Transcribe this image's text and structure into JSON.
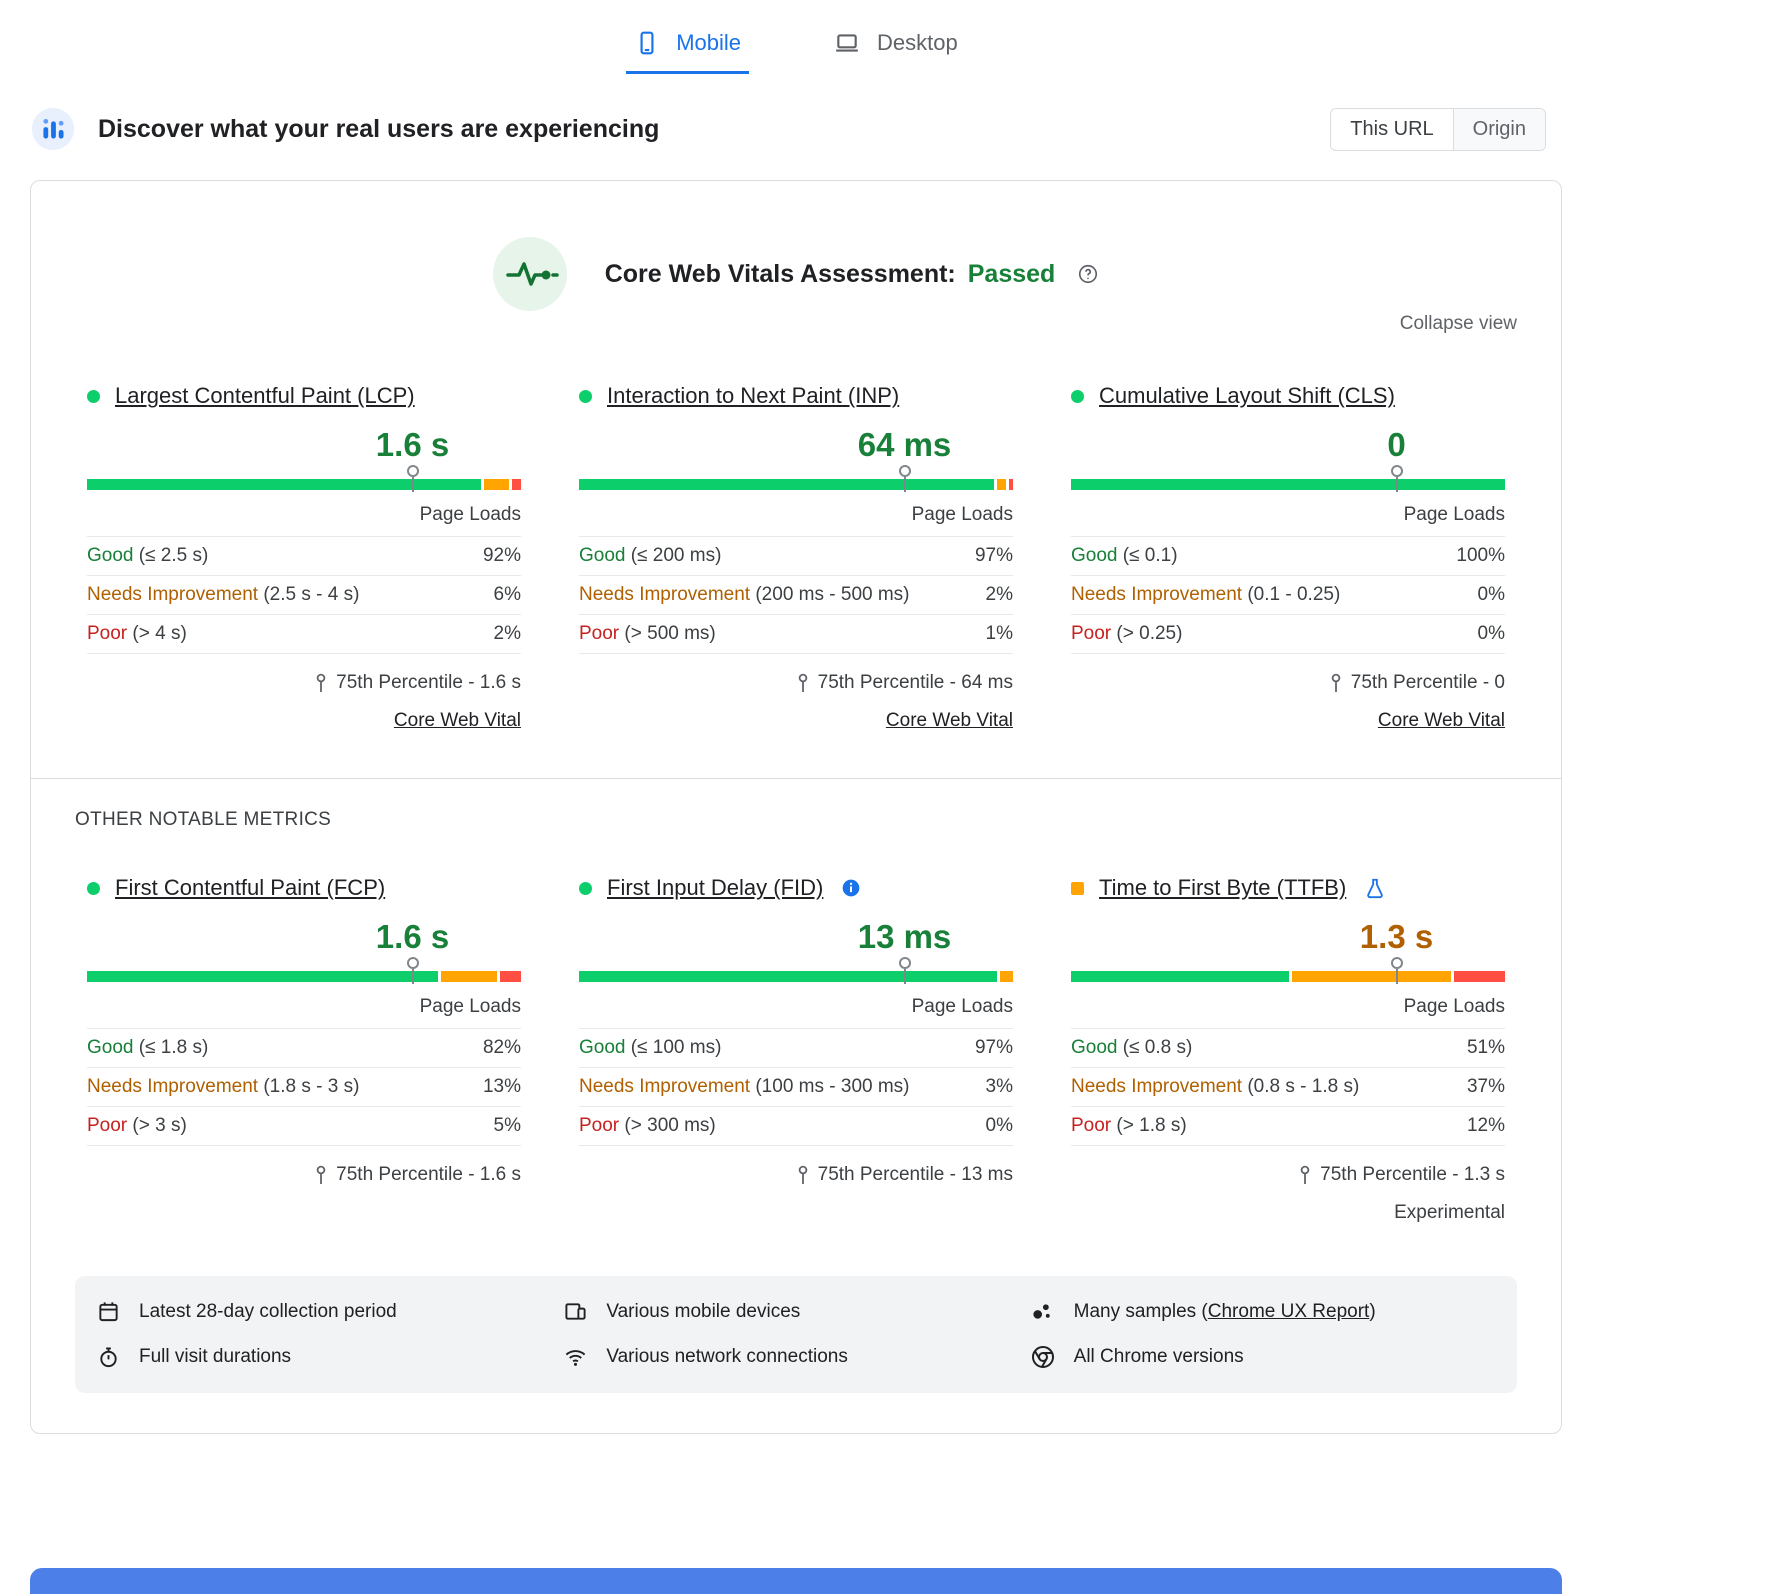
{
  "tabs": [
    {
      "id": "mobile",
      "label": "Mobile",
      "icon": "mobile-icon",
      "active": true
    },
    {
      "id": "desktop",
      "label": "Desktop",
      "icon": "desktop-icon",
      "active": false
    }
  ],
  "field_header": {
    "icon": "field-data-icon",
    "title": "Discover what your real users are experiencing",
    "scope_options": [
      {
        "label": "This URL",
        "selected": true
      },
      {
        "label": "Origin",
        "selected": false
      }
    ]
  },
  "assessment": {
    "icon": "pulse-icon",
    "title": "Core Web Vitals Assessment:",
    "result": "Passed",
    "help_icon": "help-icon",
    "collapse_label": "Collapse view"
  },
  "labels": {
    "page_loads": "Page Loads",
    "other_metrics": "OTHER NOTABLE METRICS"
  },
  "colors": {
    "good_bar": "#0cce6b",
    "needs_improvement_bar": "#ffa400",
    "poor_bar": "#ff4e42",
    "good_text": "#188038",
    "needs_improvement_text": "#b06000",
    "poor_text": "#c5221f",
    "accent_blue": "#1a73e8"
  },
  "core_metrics": [
    {
      "id": "lcp",
      "name": "Largest Contentful Paint (LCP)",
      "bullet": "dot-good",
      "badge": null,
      "value": "1.6 s",
      "value_tone": "good",
      "marker_pct": 75,
      "distribution": {
        "good": 92,
        "needs_improvement": 6,
        "poor": 2
      },
      "rows": [
        {
          "tone": "good",
          "label": "Good",
          "range": "(≤ 2.5 s)",
          "pct": "92%"
        },
        {
          "tone": "ni",
          "label": "Needs Improvement",
          "range": "(2.5 s - 4 s)",
          "pct": "6%"
        },
        {
          "tone": "poor",
          "label": "Poor",
          "range": "(> 4 s)",
          "pct": "2%"
        }
      ],
      "percentile": "75th Percentile - 1.6 s",
      "link": "Core Web Vital",
      "note": null
    },
    {
      "id": "inp",
      "name": "Interaction to Next Paint (INP)",
      "bullet": "dot-good",
      "badge": null,
      "value": "64 ms",
      "value_tone": "good",
      "marker_pct": 75,
      "distribution": {
        "good": 97,
        "needs_improvement": 2,
        "poor": 1
      },
      "rows": [
        {
          "tone": "good",
          "label": "Good",
          "range": "(≤ 200 ms)",
          "pct": "97%"
        },
        {
          "tone": "ni",
          "label": "Needs Improvement",
          "range": "(200 ms - 500 ms)",
          "pct": "2%"
        },
        {
          "tone": "poor",
          "label": "Poor",
          "range": "(> 500 ms)",
          "pct": "1%"
        }
      ],
      "percentile": "75th Percentile - 64 ms",
      "link": "Core Web Vital",
      "note": null
    },
    {
      "id": "cls",
      "name": "Cumulative Layout Shift (CLS)",
      "bullet": "dot-good",
      "badge": null,
      "value": "0",
      "value_tone": "good",
      "marker_pct": 75,
      "distribution": {
        "good": 100,
        "needs_improvement": 0,
        "poor": 0
      },
      "rows": [
        {
          "tone": "good",
          "label": "Good",
          "range": "(≤ 0.1)",
          "pct": "100%"
        },
        {
          "tone": "ni",
          "label": "Needs Improvement",
          "range": "(0.1 - 0.25)",
          "pct": "0%"
        },
        {
          "tone": "poor",
          "label": "Poor",
          "range": "(> 0.25)",
          "pct": "0%"
        }
      ],
      "percentile": "75th Percentile - 0",
      "link": "Core Web Vital",
      "note": null
    }
  ],
  "other_metrics": [
    {
      "id": "fcp",
      "name": "First Contentful Paint (FCP)",
      "bullet": "dot-good",
      "badge": null,
      "value": "1.6 s",
      "value_tone": "good",
      "marker_pct": 75,
      "distribution": {
        "good": 82,
        "needs_improvement": 13,
        "poor": 5
      },
      "rows": [
        {
          "tone": "good",
          "label": "Good",
          "range": "(≤ 1.8 s)",
          "pct": "82%"
        },
        {
          "tone": "ni",
          "label": "Needs Improvement",
          "range": "(1.8 s - 3 s)",
          "pct": "13%"
        },
        {
          "tone": "poor",
          "label": "Poor",
          "range": "(> 3 s)",
          "pct": "5%"
        }
      ],
      "percentile": "75th Percentile - 1.6 s",
      "link": null,
      "note": null
    },
    {
      "id": "fid",
      "name": "First Input Delay (FID)",
      "bullet": "dot-good",
      "badge": "info-icon",
      "value": "13 ms",
      "value_tone": "good",
      "marker_pct": 75,
      "distribution": {
        "good": 97,
        "needs_improvement": 3,
        "poor": 0
      },
      "rows": [
        {
          "tone": "good",
          "label": "Good",
          "range": "(≤ 100 ms)",
          "pct": "97%"
        },
        {
          "tone": "ni",
          "label": "Needs Improvement",
          "range": "(100 ms - 300 ms)",
          "pct": "3%"
        },
        {
          "tone": "poor",
          "label": "Poor",
          "range": "(> 300 ms)",
          "pct": "0%"
        }
      ],
      "percentile": "75th Percentile - 13 ms",
      "link": null,
      "note": null
    },
    {
      "id": "ttfb",
      "name": "Time to First Byte (TTFB)",
      "bullet": "square-ni",
      "badge": "flask-icon",
      "value": "1.3 s",
      "value_tone": "ni",
      "marker_pct": 75,
      "distribution": {
        "good": 51,
        "needs_improvement": 37,
        "poor": 12
      },
      "rows": [
        {
          "tone": "good",
          "label": "Good",
          "range": "(≤ 0.8 s)",
          "pct": "51%"
        },
        {
          "tone": "ni",
          "label": "Needs Improvement",
          "range": "(0.8 s - 1.8 s)",
          "pct": "37%"
        },
        {
          "tone": "poor",
          "label": "Poor",
          "range": "(> 1.8 s)",
          "pct": "12%"
        }
      ],
      "percentile": "75th Percentile - 1.3 s",
      "link": null,
      "note": "Experimental"
    }
  ],
  "data_footer": {
    "items": [
      {
        "icon": "calendar-icon",
        "text": "Latest 28-day collection period"
      },
      {
        "icon": "devices-icon",
        "text": "Various mobile devices"
      },
      {
        "icon": "samples-icon",
        "prefix": "Many samples (",
        "link": "Chrome UX Report",
        "suffix": ")"
      },
      {
        "icon": "stopwatch-icon",
        "text": "Full visit durations"
      },
      {
        "icon": "network-icon",
        "text": "Various network connections"
      },
      {
        "icon": "chrome-icon",
        "text": "All Chrome versions"
      }
    ]
  }
}
